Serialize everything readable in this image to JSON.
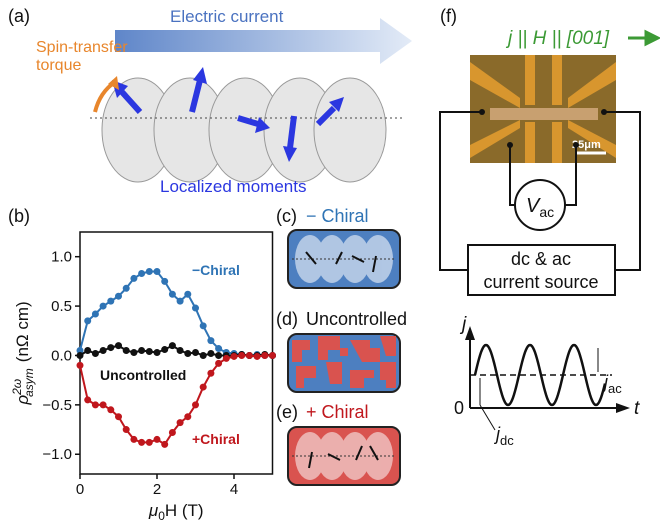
{
  "chart_data": {
    "type": "line",
    "x_label": {
      "main": "μ",
      "sub": "0",
      "rest": "H (T)"
    },
    "y_label": {
      "main": "ρ",
      "sup": "2ω",
      "sub": "asym",
      "unit": "(nΩ cm)"
    },
    "x": [
      0,
      0.2,
      0.4,
      0.6,
      0.8,
      1.0,
      1.2,
      1.4,
      1.6,
      1.8,
      2.0,
      2.2,
      2.4,
      2.6,
      2.8,
      3.0,
      3.2,
      3.4,
      3.6,
      3.8,
      4.0,
      4.2,
      4.4,
      4.6,
      4.8,
      5.0
    ],
    "series": [
      {
        "name": "−Chiral",
        "color": "#2f74b5",
        "values": [
          0.05,
          0.35,
          0.42,
          0.5,
          0.55,
          0.6,
          0.68,
          0.78,
          0.83,
          0.85,
          0.85,
          0.75,
          0.62,
          0.55,
          0.62,
          0.48,
          0.3,
          0.15,
          0.07,
          0.03,
          0.02,
          0.01,
          0.0,
          0.01,
          0.0,
          0.0
        ]
      },
      {
        "name": "Uncontrolled",
        "color": "#111111",
        "values": [
          0.0,
          0.05,
          0.02,
          0.05,
          0.08,
          0.1,
          0.05,
          0.03,
          0.05,
          0.04,
          0.03,
          0.06,
          0.1,
          0.05,
          0.02,
          0.03,
          0.0,
          0.02,
          0.0,
          0.0,
          0.0,
          0.01,
          0.0,
          0.0,
          0.01,
          0.0
        ]
      },
      {
        "name": "+Chiral",
        "color": "#c0171d",
        "values": [
          -0.1,
          -0.45,
          -0.5,
          -0.5,
          -0.55,
          -0.62,
          -0.75,
          -0.85,
          -0.88,
          -0.88,
          -0.85,
          -0.9,
          -0.78,
          -0.68,
          -0.62,
          -0.5,
          -0.32,
          -0.18,
          -0.08,
          -0.03,
          -0.01,
          0.0,
          0.0,
          -0.01,
          0.0,
          0.0
        ]
      }
    ],
    "xlim": [
      0,
      5
    ],
    "ylim": [
      -1.2,
      1.25
    ],
    "xticks": [
      0,
      2,
      4
    ],
    "yticks": [
      {
        "value": -1.0,
        "label": "−1.0"
      },
      {
        "value": -0.5,
        "label": "−0.5"
      },
      {
        "value": 0.0,
        "label": "0.0"
      },
      0.5,
      {
        "value": 1.0,
        "label": "1.0"
      }
    ]
  },
  "figure": {
    "panel_a": {
      "label": "(a)",
      "current": "Electric current",
      "torque": [
        "Spin-transfer",
        "torque"
      ],
      "moments": "Localized moments"
    },
    "panel_b": {
      "label": "(b)"
    },
    "panel_c": {
      "label": "(c)",
      "title": "− Chiral"
    },
    "panel_d": {
      "label": "(d)",
      "title": "Uncontrolled"
    },
    "panel_e": {
      "label": "(e)",
      "title": "+ Chiral"
    },
    "panel_f": {
      "label": "(f)",
      "title": "j || H || [001]",
      "scale": "25μm",
      "voltmeter": {
        "main": "V",
        "sub": "ac"
      },
      "source": [
        "dc & ac",
        "current source"
      ],
      "j_axis": "j",
      "t_axis": "t",
      "origin": "0",
      "j_ac": {
        "main": "j",
        "sub": "ac"
      },
      "j_dc": {
        "main": "j",
        "sub": "dc"
      }
    }
  }
}
